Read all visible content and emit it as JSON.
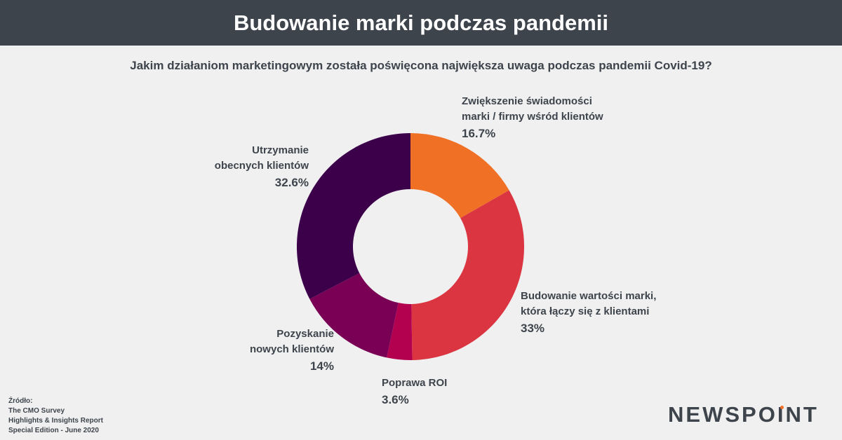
{
  "header": {
    "title": "Budowanie marki podczas pandemii"
  },
  "question": "Jakim działaniom marketingowym została poświęcona największa uwaga podczas pandemii Covid-19?",
  "chart_data": {
    "type": "pie",
    "title": "",
    "donut": true,
    "slices": [
      {
        "lines": [
          "Zwiększenie świadomości",
          "marki / firmy wśród klientów"
        ],
        "value": 16.7,
        "value_label": "16.7%",
        "color": "#f07126"
      },
      {
        "lines": [
          "Budowanie wartości marki,",
          "która łączy się z klientami"
        ],
        "value": 33,
        "value_label": "33%",
        "color": "#da3541"
      },
      {
        "lines": [
          "Poprawa ROI"
        ],
        "value": 3.6,
        "value_label": "3.6%",
        "color": "#b3004f"
      },
      {
        "lines": [
          "Pozyskanie",
          "nowych klientów"
        ],
        "value": 14,
        "value_label": "14%",
        "color": "#7a0055"
      },
      {
        "lines": [
          "Utrzymanie",
          "obecnych klientów"
        ],
        "value": 32.6,
        "value_label": "32.6%",
        "color": "#3c004b"
      }
    ]
  },
  "source": {
    "lines": [
      "Źródło:",
      "The CMO Survey",
      "Highlights & Insights Report",
      "Special Edition - June 2020"
    ]
  },
  "logo": {
    "text": "NEWSPOINT",
    "accent_color": "#f07126"
  }
}
